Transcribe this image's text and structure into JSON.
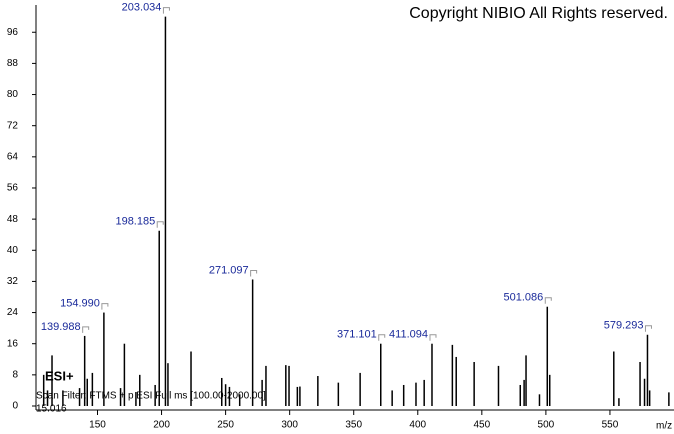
{
  "chart_data": {
    "type": "stick",
    "title": "Copyright NIBIO All Rights reserved.",
    "annotations": [
      "ESI+",
      "Scan Filter: FTMS + p ESI Full ms [100.00-2000.00]",
      "15.016"
    ],
    "x_label": "m/z",
    "xlim": [
      102,
      600
    ],
    "xticks": [
      150,
      200,
      250,
      300,
      350,
      400,
      450,
      500,
      550
    ],
    "ylim": [
      0,
      103
    ],
    "yticks": [
      0,
      8,
      16,
      24,
      32,
      40,
      48,
      56,
      64,
      72,
      80,
      88,
      96
    ],
    "series": [
      {
        "name": "labeled",
        "color": "#000000",
        "x": [
          139.988,
          {
            "value": 154.99,
            "label": "154.990"
          },
          198.185,
          203.034,
          271.097,
          371.101,
          411.094,
          501.086,
          579.293
        ],
        "values": [
          18,
          24,
          45,
          100,
          32.5,
          16,
          16,
          25.5,
          18.3
        ]
      },
      {
        "name": "unlabeled",
        "color": "#000000",
        "x": [
          108,
          114.5,
          111,
          123,
          136,
          142,
          146,
          168,
          171,
          180,
          183,
          195,
          205,
          223,
          247,
          250,
          253,
          261,
          278.5,
          281.5,
          297,
          299.5,
          306,
          308,
          322,
          338,
          355,
          380,
          389,
          398.6,
          405,
          427,
          430,
          444,
          463,
          480,
          483,
          484.5,
          495,
          503,
          553,
          557,
          573.5,
          577,
          581,
          596
        ],
        "values": [
          8,
          13,
          4,
          4,
          4.6,
          7,
          8.5,
          4.6,
          16,
          3.6,
          8,
          5.4,
          11,
          14,
          7.2,
          5.6,
          4.9,
          3,
          6.7,
          10.3,
          10.5,
          10.3,
          4.9,
          5,
          7.7,
          6,
          8.5,
          4,
          5.4,
          6,
          6.7,
          15.7,
          12.6,
          11.3,
          10.3,
          5.4,
          6.7,
          13,
          3,
          8,
          14,
          2,
          11.3,
          7,
          4,
          3.5
        ]
      }
    ]
  }
}
